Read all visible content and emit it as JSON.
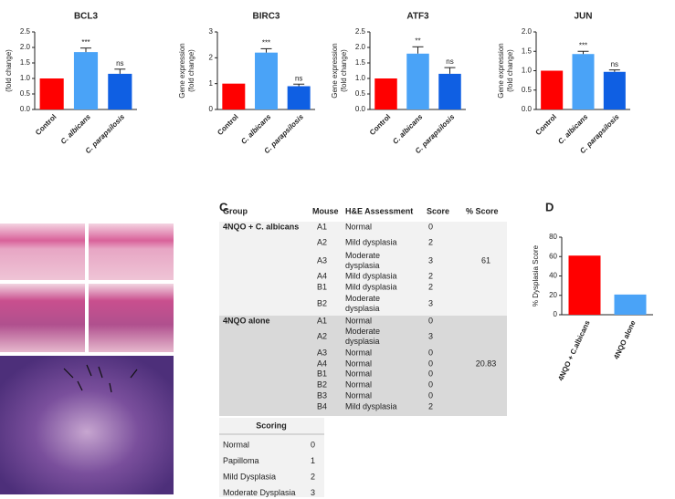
{
  "chart_data": [
    {
      "type": "bar",
      "title": "BCL3",
      "ylabel": [
        "(fold change)"
      ],
      "categories": [
        "Control",
        "C. albicans",
        "C. parapsilosis"
      ],
      "values": [
        1,
        1.85,
        1.15
      ],
      "errors": [
        0,
        0.13,
        0.15
      ],
      "significance": [
        null,
        "***",
        "ns"
      ],
      "colors": [
        "#ff0000",
        "#4aa3f7",
        "#0f5fe3"
      ],
      "ylim": [
        0,
        2.5
      ],
      "yticks": [
        {
          "value": 0,
          "label": "0.0"
        },
        {
          "value": 0.5,
          "label": "0.5"
        },
        {
          "value": 1,
          "label": "1.0"
        },
        {
          "value": 1.5,
          "label": "1.5"
        },
        {
          "value": 2,
          "label": "2.0"
        },
        {
          "value": 2.5,
          "label": "2.5"
        }
      ]
    },
    {
      "type": "bar",
      "title": "BIRC3",
      "ylabel": [
        "Gene expression",
        "(fold change)"
      ],
      "categories": [
        "Control",
        "C. albicans",
        "C. parapsilosis"
      ],
      "values": [
        1,
        2.2,
        0.9
      ],
      "errors": [
        0,
        0.15,
        0.08
      ],
      "significance": [
        null,
        "***",
        "ns"
      ],
      "colors": [
        "#ff0000",
        "#4aa3f7",
        "#0f5fe3"
      ],
      "ylim": [
        0,
        3
      ],
      "yticks": [
        0,
        1,
        2,
        3
      ]
    },
    {
      "type": "bar",
      "title": "ATF3",
      "ylabel": [
        "Gene expression",
        "(fold change)"
      ],
      "categories": [
        "Control",
        "C. albicans",
        "C. parapsilosis"
      ],
      "values": [
        1,
        1.8,
        1.15
      ],
      "errors": [
        0,
        0.22,
        0.2
      ],
      "significance": [
        null,
        "**",
        "ns"
      ],
      "colors": [
        "#ff0000",
        "#4aa3f7",
        "#0f5fe3"
      ],
      "ylim": [
        0,
        2.5
      ],
      "yticks": [
        {
          "value": 0,
          "label": "0.0"
        },
        {
          "value": 0.5,
          "label": "0.5"
        },
        {
          "value": 1,
          "label": "1.0"
        },
        {
          "value": 1.5,
          "label": "1.5"
        },
        {
          "value": 2,
          "label": "2.0"
        },
        {
          "value": 2.5,
          "label": "2.5"
        }
      ]
    },
    {
      "type": "bar",
      "title": "JUN",
      "ylabel": [
        "Gene expression",
        "(fold change)"
      ],
      "categories": [
        "Control",
        "C. albicans",
        "C. parapsilosis"
      ],
      "values": [
        1,
        1.43,
        0.97
      ],
      "errors": [
        0,
        0.07,
        0.05
      ],
      "significance": [
        null,
        "***",
        "ns"
      ],
      "colors": [
        "#ff0000",
        "#4aa3f7",
        "#0f5fe3"
      ],
      "ylim": [
        0,
        2
      ],
      "yticks": [
        {
          "value": 0,
          "label": "0.0"
        },
        {
          "value": 0.5,
          "label": "0.5"
        },
        {
          "value": 1,
          "label": "1.0"
        },
        {
          "value": 1.5,
          "label": "1.5"
        },
        {
          "value": 2,
          "label": "2.0"
        }
      ]
    },
    {
      "type": "bar",
      "panel": "D",
      "ylabel": [
        "% Dysplasia Score"
      ],
      "categories": [
        "4NQO + C.albicans",
        "4NQO alone"
      ],
      "values": [
        61,
        20.83
      ],
      "colors": [
        "#ff0000",
        "#4aa3f7"
      ],
      "ylim": [
        0,
        80
      ],
      "yticks": [
        0,
        20,
        40,
        60,
        80
      ]
    }
  ],
  "table": {
    "panel": "C",
    "header": [
      "Group",
      "Mouse",
      "H&E Assessment",
      "Score",
      "% Score"
    ],
    "groups": [
      {
        "name": "4NQO + C. albicans",
        "percent_score": 61,
        "rows": [
          [
            "A1",
            "Normal",
            0
          ],
          [
            "A2",
            "Mild dysplasia",
            2
          ],
          [
            "A3",
            "Moderate dysplasia",
            3
          ],
          [
            "A4",
            "Mild dysplasia",
            2
          ],
          [
            "B1",
            "Mild dysplasia",
            2
          ],
          [
            "B2",
            "Moderate dysplasia",
            3
          ]
        ]
      },
      {
        "name": "4NQO alone",
        "percent_score": 20.83,
        "rows": [
          [
            "A1",
            "Normal",
            0
          ],
          [
            "A2",
            "Moderate dysplasia",
            3
          ],
          [
            "A3",
            "Normal",
            0
          ],
          [
            "A4",
            "Normal",
            0
          ],
          [
            "B1",
            "Normal",
            0
          ],
          [
            "B2",
            "Normal",
            0
          ],
          [
            "B3",
            "Normal",
            0
          ],
          [
            "B4",
            "Mild dysplasia",
            2
          ]
        ]
      }
    ]
  },
  "scoring": {
    "title": "Scoring",
    "rows": [
      [
        "Normal",
        0
      ],
      [
        "Papilloma",
        1
      ],
      [
        "Mild Dysplasia",
        2
      ],
      [
        "Moderate Dysplasia",
        3
      ]
    ]
  }
}
